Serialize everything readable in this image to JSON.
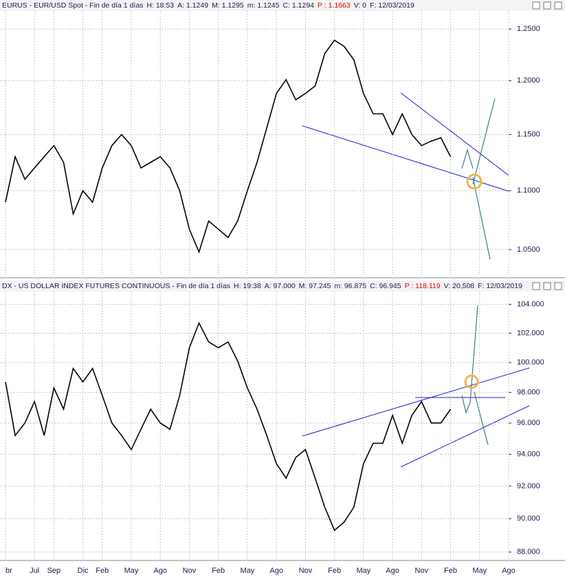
{
  "chart_data": [
    {
      "type": "line",
      "header": [
        "EURUS - EUR/USD Spot - Fin de día 1 días",
        "H: 18:53",
        "A: 1.1249",
        "M: 1.1295",
        "m: 1.1245",
        "C: 1.1294",
        "P : 1.1663",
        "V: 0",
        "F: 12/03/2019"
      ],
      "categories": [
        "br",
        null,
        null,
        "Jul",
        null,
        "Sep",
        null,
        null,
        "Dic",
        null,
        "Feb",
        null,
        null,
        "May",
        null,
        null,
        "Ago",
        null,
        null,
        "Nov",
        null,
        null,
        "Feb",
        null,
        null,
        "May",
        null,
        null,
        "Ago",
        null,
        null,
        "Nov",
        null,
        null,
        "Feb",
        null,
        null,
        "May",
        null,
        null,
        "Ago",
        null,
        null,
        "Nov",
        null,
        null,
        "Feb",
        null,
        null,
        "May",
        null,
        null,
        "Ago"
      ],
      "values": [
        1.09,
        1.13,
        1.11,
        1.12,
        1.13,
        1.14,
        1.125,
        1.08,
        1.1,
        1.09,
        1.12,
        1.14,
        1.15,
        1.14,
        1.12,
        1.125,
        1.13,
        1.12,
        1.1,
        1.067,
        1.048,
        1.074,
        1.067,
        1.06,
        1.074,
        1.1,
        1.125,
        1.156,
        1.188,
        1.201,
        1.182,
        1.188,
        1.195,
        1.226,
        1.239,
        1.233,
        1.22,
        1.188,
        1.169,
        1.169,
        1.15,
        1.169,
        1.15,
        1.14,
        1.144,
        1.147,
        1.13,
        null,
        null,
        null,
        null,
        null,
        null
      ],
      "color": "#000000",
      "log_scale": true,
      "grid": true,
      "ylim": [
        1.029,
        1.268
      ],
      "yticks": [
        {
          "value": 1.05,
          "label": "1.0500"
        },
        {
          "value": 1.1,
          "label": "1.1000"
        },
        {
          "value": 1.15,
          "label": "1.1500"
        },
        {
          "value": 1.2,
          "label": "1.2000"
        },
        {
          "value": 1.25,
          "label": "1.2500"
        }
      ]
    },
    {
      "type": "line",
      "header": [
        "DX - US DOLLAR INDEX FUTURES CONTINUOUS - Fin de día 1 días",
        "H: 19:38",
        "A: 97.000",
        "M: 97.245",
        "m: 96.875",
        "C: 96.945",
        "P : 118.119",
        "V: 20,508",
        "F: 12/03/2019"
      ],
      "values": [
        98.7,
        95.2,
        96.0,
        97.4,
        95.2,
        98.3,
        96.9,
        99.6,
        98.7,
        99.6,
        97.8,
        96.0,
        95.2,
        94.3,
        95.6,
        96.9,
        96.0,
        95.6,
        97.8,
        101.0,
        102.7,
        101.4,
        101.0,
        101.4,
        100.1,
        98.3,
        96.9,
        95.2,
        93.4,
        92.5,
        93.8,
        94.3,
        92.5,
        90.7,
        89.3,
        89.8,
        90.7,
        93.4,
        94.7,
        94.7,
        96.5,
        94.7,
        96.5,
        97.4,
        96.0,
        96.0,
        96.9,
        null,
        null,
        null,
        null,
        null,
        null
      ],
      "color": "#000000",
      "log_scale": true,
      "grid": true,
      "ylim": [
        87.5,
        104.9
      ],
      "yticks": [
        {
          "value": 88,
          "label": "88.000"
        },
        {
          "value": 90,
          "label": "90.000"
        },
        {
          "value": 92,
          "label": "92.000"
        },
        {
          "value": 94,
          "label": "94.000"
        },
        {
          "value": 96,
          "label": "96.000"
        },
        {
          "value": 98,
          "label": "98.000"
        },
        {
          "value": 100,
          "label": "100.000"
        },
        {
          "value": 102,
          "label": "102.000"
        },
        {
          "value": 104,
          "label": "104.000"
        }
      ]
    }
  ]
}
